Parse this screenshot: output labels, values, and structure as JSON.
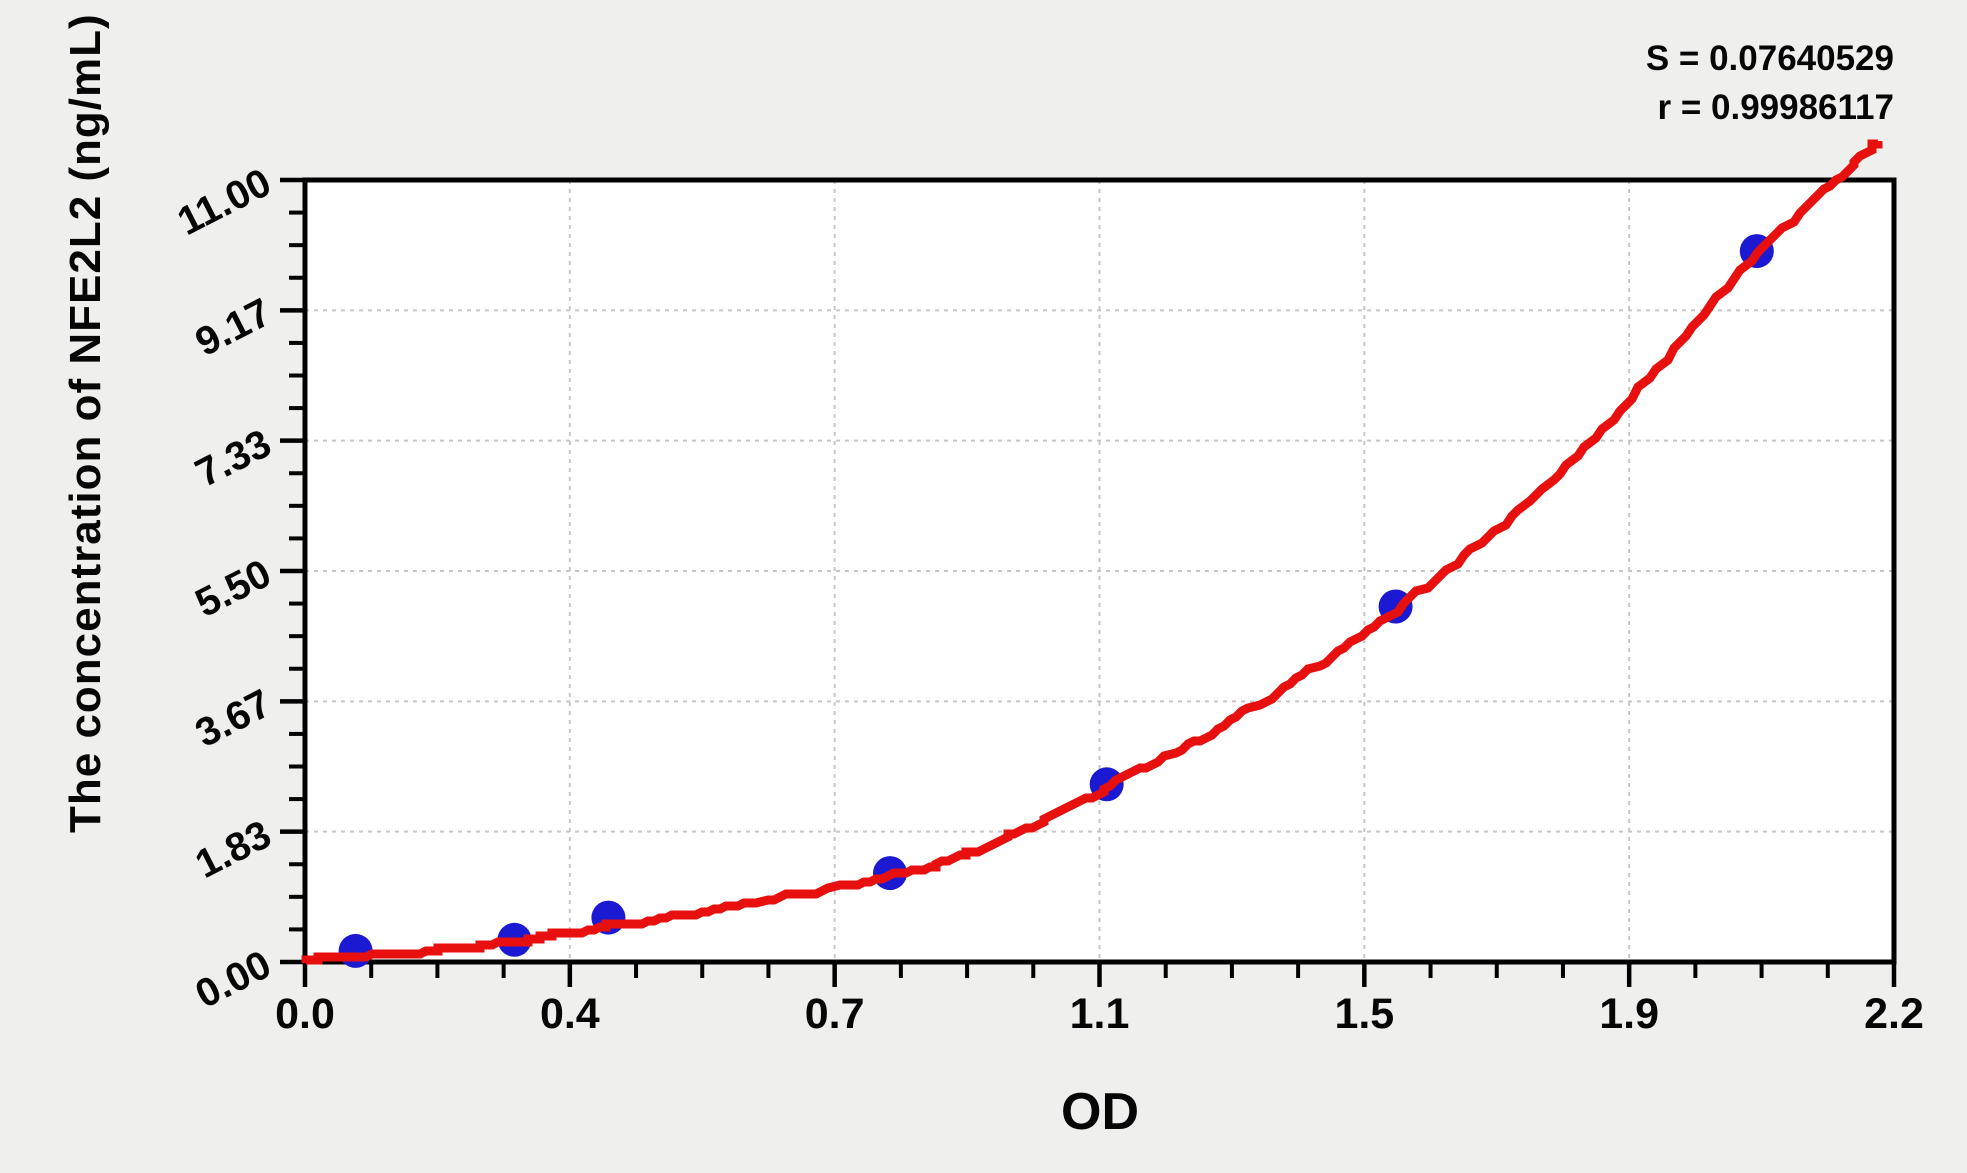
{
  "chart_data": {
    "type": "scatter",
    "title": "",
    "xlabel": "OD",
    "ylabel": "The concentration of NFE2L2 (ng/mL)",
    "annotations": {
      "s": "S = 0.07640529",
      "r": "r = 0.99986117"
    },
    "xlim": [
      0,
      2.2
    ],
    "ylim": [
      0,
      11
    ],
    "x_tick_labels": [
      "0.0",
      "0.4",
      "0.7",
      "1.1",
      "1.5",
      "1.9",
      "2.2"
    ],
    "y_tick_labels": [
      "0.00",
      "1.83",
      "3.67",
      "5.50",
      "7.33",
      "9.17",
      "11.00"
    ],
    "minor_ticks_per_interval": 3,
    "grid": true,
    "legend": null,
    "series": [
      {
        "name": "standard-points",
        "type": "scatter",
        "points": [
          {
            "od": 0.07,
            "conc": 0.156
          },
          {
            "od": 0.29,
            "conc": 0.312
          },
          {
            "od": 0.42,
            "conc": 0.625
          },
          {
            "od": 0.81,
            "conc": 1.25
          },
          {
            "od": 1.11,
            "conc": 2.5
          },
          {
            "od": 1.51,
            "conc": 5.0
          },
          {
            "od": 2.01,
            "conc": 10.0
          }
        ]
      },
      {
        "name": "fitted-curve",
        "type": "line",
        "anchors": [
          [
            0,
            0.02
          ],
          [
            0.07,
            0.08
          ],
          [
            0.18,
            0.16
          ],
          [
            0.29,
            0.29
          ],
          [
            0.42,
            0.5
          ],
          [
            0.6,
            0.8
          ],
          [
            0.81,
            1.2
          ],
          [
            0.95,
            1.65
          ],
          [
            1.11,
            2.45
          ],
          [
            1.3,
            3.5
          ],
          [
            1.51,
            4.95
          ],
          [
            1.75,
            7.0
          ],
          [
            2.01,
            9.95
          ],
          [
            2.18,
            11.55
          ]
        ]
      }
    ]
  },
  "colors": {
    "background": "#efefee",
    "plot_bg": "#ffffff",
    "axis": "#000000",
    "grid": "#c6c6c6",
    "curve": "#e8100e",
    "point": "#1b1ad2",
    "text": "#060606"
  }
}
